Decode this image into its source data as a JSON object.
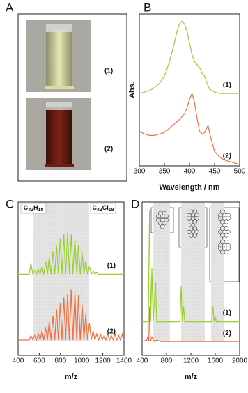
{
  "chart_data": [
    {
      "type": "image",
      "panel": "A",
      "items": [
        {
          "label": "(1)",
          "color": "#d8dd9a"
        },
        {
          "label": "(2)",
          "color": "#6b1f14"
        }
      ]
    },
    {
      "type": "line",
      "panel": "B",
      "x_label": "Wavelength / nm",
      "y_label": "Abs.",
      "xlim": [
        300,
        500
      ],
      "ylim": [
        0,
        1.05
      ],
      "xticks": [
        300,
        350,
        400,
        450,
        500
      ],
      "series": [
        {
          "name": "(1)",
          "color": "#9acd32",
          "x": [
            300,
            310,
            320,
            330,
            340,
            350,
            360,
            370,
            375,
            380,
            385,
            390,
            395,
            400,
            405,
            410,
            415,
            420,
            425,
            430,
            435,
            440,
            450,
            460,
            480,
            500
          ],
          "values": [
            0.5,
            0.51,
            0.52,
            0.54,
            0.57,
            0.62,
            0.72,
            0.85,
            0.93,
            0.98,
            1.0,
            0.98,
            0.93,
            0.85,
            0.77,
            0.72,
            0.7,
            0.68,
            0.64,
            0.62,
            0.57,
            0.53,
            0.51,
            0.5,
            0.5,
            0.5
          ]
        },
        {
          "name": "(2)",
          "color": "#f07040",
          "x": [
            300,
            310,
            320,
            330,
            340,
            350,
            360,
            370,
            380,
            390,
            395,
            400,
            405,
            410,
            415,
            420,
            425,
            430,
            437,
            442,
            450,
            460,
            470,
            480,
            490,
            500
          ],
          "values": [
            0.24,
            0.22,
            0.21,
            0.21,
            0.22,
            0.23,
            0.26,
            0.29,
            0.32,
            0.36,
            0.4,
            0.46,
            0.5,
            0.44,
            0.33,
            0.24,
            0.22,
            0.23,
            0.28,
            0.2,
            0.1,
            0.06,
            0.04,
            0.03,
            0.02,
            0.01
          ]
        }
      ]
    },
    {
      "type": "line",
      "panel": "C",
      "x_label": "m/z",
      "annotations": [
        "C42H18",
        "C42Cl18"
      ],
      "xlim": [
        400,
        1400
      ],
      "ylim": [
        0,
        1
      ],
      "xticks": [
        400,
        600,
        800,
        1000,
        1200,
        1400
      ],
      "series": [
        {
          "name": "(1)",
          "color": "#9acd32",
          "x": [
            400,
            505,
            522,
            539,
            556,
            573,
            591,
            608,
            625,
            642,
            660,
            677,
            694,
            711,
            729,
            746,
            763,
            780,
            798,
            815,
            832,
            849,
            867,
            884,
            901,
            918,
            936,
            953,
            970,
            987,
            1005,
            1022,
            1039,
            1056,
            1074,
            1091,
            1108,
            1125,
            1143,
            1160,
            1400
          ],
          "values": [
            0.53,
            0.53,
            0.6,
            0.53,
            0.55,
            0.53,
            0.56,
            0.53,
            0.58,
            0.53,
            0.61,
            0.53,
            0.64,
            0.53,
            0.68,
            0.53,
            0.72,
            0.53,
            0.76,
            0.53,
            0.79,
            0.53,
            0.8,
            0.53,
            0.79,
            0.53,
            0.76,
            0.53,
            0.72,
            0.53,
            0.67,
            0.53,
            0.62,
            0.53,
            0.58,
            0.53,
            0.55,
            0.53,
            0.54,
            0.53,
            0.53
          ]
        },
        {
          "name": "(2)",
          "color": "#f07040",
          "x": [
            400,
            505,
            522,
            539,
            556,
            573,
            591,
            608,
            625,
            642,
            660,
            677,
            694,
            711,
            729,
            746,
            763,
            780,
            798,
            815,
            832,
            849,
            867,
            884,
            901,
            918,
            936,
            953,
            970,
            987,
            1005,
            1022,
            1039,
            1056,
            1074,
            1091,
            1108,
            1125,
            1143,
            1160,
            1177,
            1194,
            1212,
            1229,
            1246,
            1263,
            1281,
            1298,
            1315,
            1332,
            1350,
            1367,
            1384,
            1400
          ],
          "values": [
            0.1,
            0.1,
            0.13,
            0.1,
            0.13,
            0.1,
            0.14,
            0.1,
            0.16,
            0.1,
            0.18,
            0.1,
            0.22,
            0.1,
            0.26,
            0.1,
            0.3,
            0.1,
            0.34,
            0.1,
            0.38,
            0.1,
            0.4,
            0.1,
            0.43,
            0.1,
            0.41,
            0.1,
            0.39,
            0.1,
            0.33,
            0.1,
            0.27,
            0.1,
            0.21,
            0.1,
            0.16,
            0.1,
            0.14,
            0.1,
            0.14,
            0.1,
            0.13,
            0.1,
            0.14,
            0.1,
            0.13,
            0.1,
            0.14,
            0.1,
            0.13,
            0.1,
            0.14,
            0.1
          ]
        }
      ]
    },
    {
      "type": "line",
      "panel": "D",
      "x_label": "m/z",
      "xlim": [
        400,
        2000
      ],
      "ylim": [
        0,
        1
      ],
      "xticks": [
        400,
        800,
        1200,
        1600,
        2000
      ],
      "series": [
        {
          "name": "(1)",
          "color": "#9acd32",
          "x": [
            400,
            500,
            522,
            540,
            560,
            580,
            620,
            640,
            1020,
            1040,
            1060,
            1080,
            1100,
            1540,
            1560,
            1580,
            1600,
            1620,
            2000
          ],
          "values": [
            0.22,
            0.22,
            0.95,
            0.22,
            0.57,
            0.22,
            0.48,
            0.22,
            0.22,
            0.45,
            0.22,
            0.32,
            0.22,
            0.22,
            0.32,
            0.22,
            0.25,
            0.22,
            0.22
          ]
        },
        {
          "name": "(2)",
          "color": "#f07040",
          "x": [
            400,
            480,
            500,
            510,
            522,
            535,
            560,
            600,
            640,
            700,
            2000
          ],
          "values": [
            0.09,
            0.1,
            0.13,
            0.09,
            0.32,
            0.09,
            0.12,
            0.09,
            0.1,
            0.09,
            0.09
          ]
        }
      ]
    }
  ]
}
